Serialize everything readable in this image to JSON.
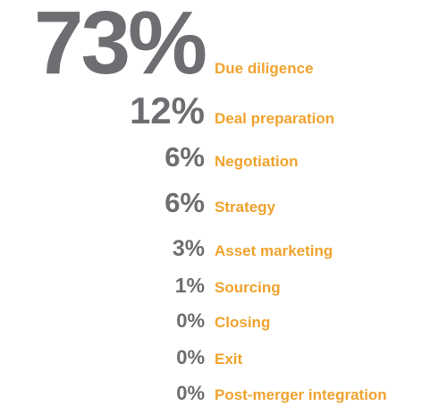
{
  "items": [
    {
      "value": "73%",
      "label": "Due diligence"
    },
    {
      "value": "12%",
      "label": "Deal preparation"
    },
    {
      "value": "6%",
      "label": "Negotiation"
    },
    {
      "value": "6%",
      "label": "Strategy"
    },
    {
      "value": "3%",
      "label": "Asset marketing"
    },
    {
      "value": "1%",
      "label": "Sourcing"
    },
    {
      "value": "0%",
      "label": "Closing"
    },
    {
      "value": "0%",
      "label": "Exit"
    },
    {
      "value": "0%",
      "label": "Post-merger integration"
    }
  ]
}
